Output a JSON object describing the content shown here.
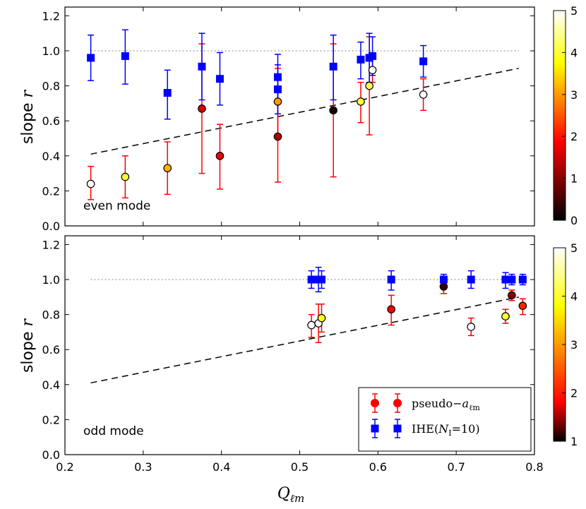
{
  "chart_data": [
    {
      "type": "scatter",
      "panel": "top",
      "annotation": "even mode",
      "ylabel": "slope r",
      "xlim": [
        0.2,
        0.8
      ],
      "ylim": [
        0.0,
        1.25
      ],
      "xticks": [
        "0.2",
        "0.3",
        "0.4",
        "0.5",
        "0.6",
        "0.7",
        "0.8"
      ],
      "yticks": [
        "0.0",
        "0.2",
        "0.4",
        "0.6",
        "0.8",
        "1.0",
        "1.2"
      ],
      "reference_line": {
        "y": 1.0,
        "style": "dotted"
      },
      "fit_line": {
        "x": [
          0.233,
          0.78
        ],
        "y": [
          0.41,
          0.9
        ],
        "style": "dashed"
      },
      "colorbar": {
        "min": 0,
        "max": 5,
        "ticks": [
          "0",
          "1",
          "2",
          "3",
          "4",
          "5"
        ]
      },
      "series": [
        {
          "name": "pseudo-a_lm",
          "marker": "circle",
          "points": [
            {
              "x": 0.233,
              "y": 0.24,
              "lo": 0.15,
              "hi": 0.34,
              "c": 5.0
            },
            {
              "x": 0.277,
              "y": 0.28,
              "lo": 0.16,
              "hi": 0.4,
              "c": 4.0
            },
            {
              "x": 0.331,
              "y": 0.33,
              "lo": 0.18,
              "hi": 0.48,
              "c": 3.2
            },
            {
              "x": 0.375,
              "y": 0.67,
              "lo": 0.3,
              "hi": 1.04,
              "c": 1.6
            },
            {
              "x": 0.398,
              "y": 0.4,
              "lo": 0.21,
              "hi": 0.58,
              "c": 1.8
            },
            {
              "x": 0.472,
              "y": 0.71,
              "lo": 0.52,
              "hi": 0.9,
              "c": 3.0
            },
            {
              "x": 0.472,
              "y": 0.51,
              "lo": 0.25,
              "hi": 0.78,
              "c": 1.3
            },
            {
              "x": 0.543,
              "y": 0.66,
              "lo": 0.28,
              "hi": 1.04,
              "c": 0.2
            },
            {
              "x": 0.578,
              "y": 0.71,
              "lo": 0.59,
              "hi": 0.82,
              "c": 4.0
            },
            {
              "x": 0.589,
              "y": 0.8,
              "lo": 0.52,
              "hi": 1.08,
              "c": 4.1
            },
            {
              "x": 0.593,
              "y": 0.89,
              "lo": 0.82,
              "hi": 0.97,
              "c": 5.0
            },
            {
              "x": 0.658,
              "y": 0.75,
              "lo": 0.66,
              "hi": 0.84,
              "c": 5.0
            }
          ]
        },
        {
          "name": "IHE(N_I=10)",
          "marker": "square",
          "points": [
            {
              "x": 0.233,
              "y": 0.96,
              "lo": 0.83,
              "hi": 1.09
            },
            {
              "x": 0.277,
              "y": 0.97,
              "lo": 0.81,
              "hi": 1.12
            },
            {
              "x": 0.331,
              "y": 0.76,
              "lo": 0.61,
              "hi": 0.89
            },
            {
              "x": 0.375,
              "y": 0.91,
              "lo": 0.72,
              "hi": 1.1
            },
            {
              "x": 0.398,
              "y": 0.84,
              "lo": 0.69,
              "hi": 0.99
            },
            {
              "x": 0.472,
              "y": 0.85,
              "lo": 0.72,
              "hi": 0.98
            },
            {
              "x": 0.472,
              "y": 0.78,
              "lo": 0.64,
              "hi": 0.92
            },
            {
              "x": 0.543,
              "y": 0.91,
              "lo": 0.72,
              "hi": 1.09
            },
            {
              "x": 0.578,
              "y": 0.95,
              "lo": 0.84,
              "hi": 1.05
            },
            {
              "x": 0.589,
              "y": 0.96,
              "lo": 0.82,
              "hi": 1.1
            },
            {
              "x": 0.593,
              "y": 0.97,
              "lo": 0.86,
              "hi": 1.08
            },
            {
              "x": 0.658,
              "y": 0.94,
              "lo": 0.85,
              "hi": 1.03
            }
          ]
        }
      ]
    },
    {
      "type": "scatter",
      "panel": "bottom",
      "annotation": "odd mode",
      "ylabel": "slope r",
      "xlabel": "Q_lm",
      "xlim": [
        0.2,
        0.8
      ],
      "ylim": [
        0.0,
        1.25
      ],
      "xticks": [
        "0.2",
        "0.3",
        "0.4",
        "0.5",
        "0.6",
        "0.7",
        "0.8"
      ],
      "yticks": [
        "0.0",
        "0.2",
        "0.4",
        "0.6",
        "0.8",
        "1.0",
        "1.2"
      ],
      "reference_line": {
        "y": 1.0,
        "style": "dotted"
      },
      "fit_line": {
        "x": [
          0.233,
          0.78
        ],
        "y": [
          0.41,
          0.9
        ],
        "style": "dashed"
      },
      "colorbar": {
        "min": 1,
        "max": 5,
        "ticks": [
          "1",
          "2",
          "3",
          "4",
          "5"
        ]
      },
      "legend_position": "bottom-right",
      "series": [
        {
          "name": "pseudo-a_lm",
          "marker": "circle",
          "points": [
            {
              "x": 0.515,
              "y": 0.74,
              "lo": 0.67,
              "hi": 0.8,
              "c": 5.0
            },
            {
              "x": 0.524,
              "y": 0.75,
              "lo": 0.64,
              "hi": 0.86,
              "c": 5.0
            },
            {
              "x": 0.528,
              "y": 0.78,
              "lo": 0.7,
              "hi": 0.86,
              "c": 4.1
            },
            {
              "x": 0.617,
              "y": 0.83,
              "lo": 0.74,
              "hi": 0.91,
              "c": 2.5
            },
            {
              "x": 0.684,
              "y": 0.96,
              "lo": 0.92,
              "hi": 1.0,
              "c": 1.3
            },
            {
              "x": 0.719,
              "y": 0.73,
              "lo": 0.68,
              "hi": 0.78,
              "c": 5.0
            },
            {
              "x": 0.763,
              "y": 0.79,
              "lo": 0.75,
              "hi": 0.83,
              "c": 4.2
            },
            {
              "x": 0.771,
              "y": 0.91,
              "lo": 0.88,
              "hi": 0.94,
              "c": 1.8
            },
            {
              "x": 0.785,
              "y": 0.85,
              "lo": 0.8,
              "hi": 0.89,
              "c": 2.7
            }
          ]
        },
        {
          "name": "IHE(N_I=10)",
          "marker": "square",
          "points": [
            {
              "x": 0.515,
              "y": 1.0,
              "lo": 0.95,
              "hi": 1.05
            },
            {
              "x": 0.524,
              "y": 1.0,
              "lo": 0.93,
              "hi": 1.07
            },
            {
              "x": 0.528,
              "y": 1.0,
              "lo": 0.95,
              "hi": 1.05
            },
            {
              "x": 0.617,
              "y": 1.0,
              "lo": 0.94,
              "hi": 1.05
            },
            {
              "x": 0.684,
              "y": 1.0,
              "lo": 0.97,
              "hi": 1.03
            },
            {
              "x": 0.719,
              "y": 1.0,
              "lo": 0.95,
              "hi": 1.05
            },
            {
              "x": 0.763,
              "y": 1.0,
              "lo": 0.95,
              "hi": 1.04
            },
            {
              "x": 0.771,
              "y": 1.0,
              "lo": 0.97,
              "hi": 1.03
            },
            {
              "x": 0.785,
              "y": 1.0,
              "lo": 0.97,
              "hi": 1.03
            }
          ]
        }
      ]
    }
  ],
  "labels": {
    "ylabel_top": "slope ",
    "ylabel_var": "r",
    "ylabel_bottom": "slope ",
    "annotation_top": "even mode",
    "annotation_bottom": "odd mode",
    "xlabel_main": "Q",
    "xlabel_sub": "ℓm",
    "legend_1_main": "pseudo−",
    "legend_1_var": "a",
    "legend_1_sub": "ℓm",
    "legend_2_main": "IHE(",
    "legend_2_var": "N",
    "legend_2_sub": "I",
    "legend_2_rest": "=10)"
  },
  "colors": {
    "square": "#0000ff",
    "error_red": "#ff0000",
    "error_blue": "#0000ff",
    "colormap_stops": [
      "#000000",
      "#ff0000",
      "#ffff00",
      "#ffffff"
    ]
  }
}
